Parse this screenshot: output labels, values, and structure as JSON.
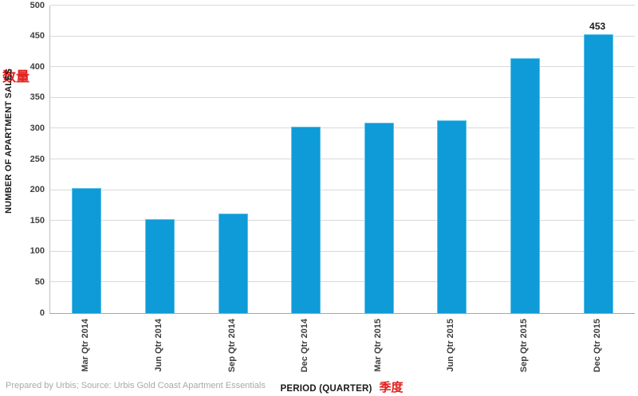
{
  "page": {
    "background": "#ffffff"
  },
  "footer": {
    "text": "Prepared by Urbis; Source: Urbis Gold Coast Apartment Essentials"
  },
  "chart_data": {
    "type": "bar",
    "categories": [
      "Mar Qtr 2014",
      "Jun Qtr 2014",
      "Sep Qtr 2014",
      "Dec Qtr 2014",
      "Mar Qtr 2015",
      "Jun Qtr 2015",
      "Sep Qtr 2015",
      "Dec Qtr 2015"
    ],
    "values": [
      204,
      153,
      162,
      303,
      310,
      313,
      415,
      453
    ],
    "bar_labels": [
      "",
      "",
      "",
      "",
      "",
      "",
      "",
      "453"
    ],
    "title": "",
    "xlabel": "PERIOD (QUARTER)",
    "xlabel_annotation": "季度",
    "ylabel": "NUMBER OF APARTMENT SALES",
    "ylabel_annotation": "数量",
    "annotation_color": "#e0201c",
    "bar_color": "#0e9bd8",
    "ylim": [
      0,
      500
    ],
    "yticks": [
      0,
      50,
      100,
      150,
      200,
      250,
      300,
      350,
      400,
      450,
      500
    ],
    "grid": "horizontal",
    "legend": "none"
  }
}
